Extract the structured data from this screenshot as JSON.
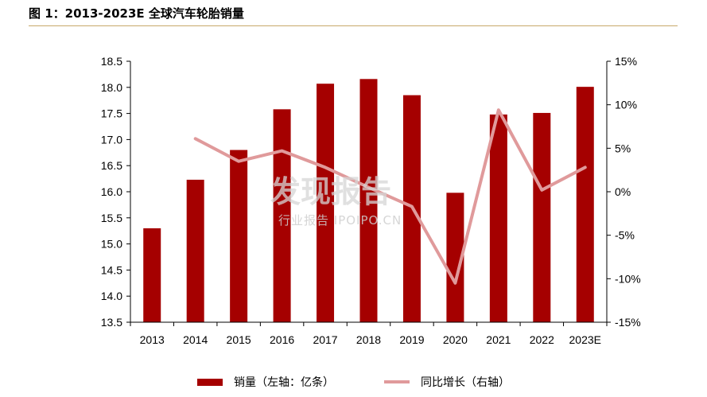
{
  "title": "图 1：2013-2023E 全球汽车轮胎销量",
  "colors": {
    "bar": "#a50000",
    "line": "#e09a9b",
    "axis": "#000000",
    "title_rule": "#c7a86a"
  },
  "watermark": {
    "brand": "发现报告",
    "sub": "行业报告 IPOIPO.CN"
  },
  "chart_data": {
    "type": "bar+line",
    "categories": [
      "2013",
      "2014",
      "2015",
      "2016",
      "2017",
      "2018",
      "2019",
      "2020",
      "2021",
      "2022",
      "2023E"
    ],
    "series": [
      {
        "name": "销量（左轴：亿条）",
        "type": "bar",
        "axis": "left",
        "values": [
          15.3,
          16.23,
          16.8,
          17.58,
          18.07,
          18.16,
          17.85,
          15.98,
          17.48,
          17.51,
          18.01
        ]
      },
      {
        "name": "同比增长（右轴）",
        "type": "line",
        "axis": "right",
        "values": [
          null,
          6.1,
          3.5,
          4.7,
          2.8,
          0.5,
          -1.7,
          -10.5,
          9.4,
          0.2,
          2.8
        ]
      }
    ],
    "left_axis": {
      "min": 13.5,
      "max": 18.5,
      "step": 0.5,
      "tick_labels": [
        "13.5",
        "14.0",
        "14.5",
        "15.0",
        "15.5",
        "16.0",
        "16.5",
        "17.0",
        "17.5",
        "18.0",
        "18.5"
      ]
    },
    "right_axis": {
      "min": -15,
      "max": 15,
      "step": 5,
      "tick_labels": [
        "-15%",
        "-10%",
        "-5%",
        "0%",
        "5%",
        "10%",
        "15%"
      ]
    },
    "grid": false,
    "legend_position": "bottom"
  }
}
